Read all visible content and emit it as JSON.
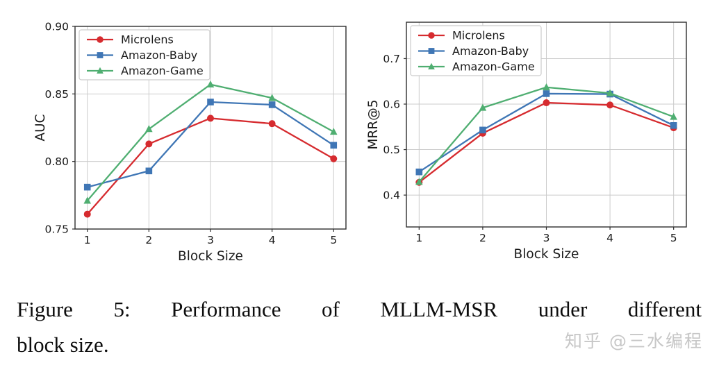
{
  "figure": {
    "caption_line1": "Figure 5: Performance of MLLM-MSR under different",
    "caption_line2": "block size.",
    "watermark": "知乎 @三水编程"
  },
  "colors": {
    "microlens": "#d62b2f",
    "amazon_baby": "#3f76b5",
    "amazon_game": "#4fae71",
    "grid": "#cbcbcb",
    "axis": "#2e2e2e",
    "tick_text": "#1a1a1a",
    "legend_border": "#cccccc",
    "legend_bg": "#ffffff"
  },
  "chart_data": [
    {
      "type": "line",
      "title": "",
      "xlabel": "Block Size",
      "ylabel": "AUC",
      "x": [
        1,
        2,
        3,
        4,
        5
      ],
      "xtick_labels": [
        "1",
        "2",
        "3",
        "4",
        "5"
      ],
      "xlim": [
        0.8,
        5.2
      ],
      "ylim": [
        0.75,
        0.9
      ],
      "yticks": [
        0.75,
        0.8,
        0.85,
        0.9
      ],
      "ytick_labels": [
        "0.75",
        "0.80",
        "0.85",
        "0.90"
      ],
      "grid": true,
      "legend_position": "upper left",
      "series": [
        {
          "name": "Microlens",
          "marker": "circle",
          "color": "#d62b2f",
          "values": [
            0.761,
            0.813,
            0.832,
            0.828,
            0.802
          ]
        },
        {
          "name": "Amazon-Baby",
          "marker": "square",
          "color": "#3f76b5",
          "values": [
            0.781,
            0.793,
            0.844,
            0.842,
            0.812
          ]
        },
        {
          "name": "Amazon-Game",
          "marker": "triangle",
          "color": "#4fae71",
          "values": [
            0.771,
            0.824,
            0.857,
            0.847,
            0.822
          ]
        }
      ]
    },
    {
      "type": "line",
      "title": "",
      "xlabel": "Block Size",
      "ylabel": "MRR@5",
      "x": [
        1,
        2,
        3,
        4,
        5
      ],
      "xtick_labels": [
        "1",
        "2",
        "3",
        "4",
        "5"
      ],
      "xlim": [
        0.8,
        5.2
      ],
      "ylim": [
        0.33,
        0.78
      ],
      "yticks": [
        0.4,
        0.5,
        0.6,
        0.7
      ],
      "ytick_labels": [
        "0.4",
        "0.5",
        "0.6",
        "0.7"
      ],
      "grid": true,
      "legend_position": "upper left",
      "series": [
        {
          "name": "Microlens",
          "marker": "circle",
          "color": "#d62b2f",
          "values": [
            0.428,
            0.536,
            0.603,
            0.598,
            0.548
          ]
        },
        {
          "name": "Amazon-Baby",
          "marker": "square",
          "color": "#3f76b5",
          "values": [
            0.451,
            0.543,
            0.623,
            0.622,
            0.553
          ]
        },
        {
          "name": "Amazon-Game",
          "marker": "triangle",
          "color": "#4fae71",
          "values": [
            0.429,
            0.592,
            0.637,
            0.624,
            0.572
          ]
        }
      ]
    }
  ]
}
